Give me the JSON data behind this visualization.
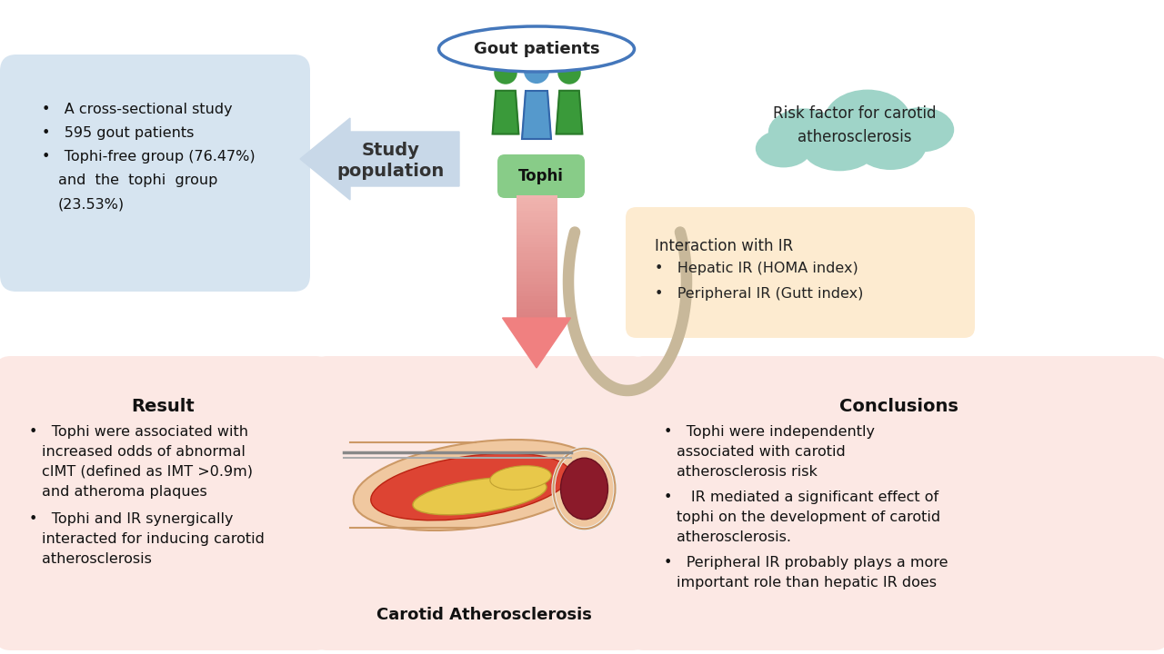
{
  "bg_color": "#ffffff",
  "gout_label": "Gout patients",
  "tophi_label": "Tophi",
  "study_pop_label": "Study\npopulation",
  "blue_box_color": "#d6e4f0",
  "cloud_color": "#9fd4c8",
  "cloud_text": "Risk factor for carotid\natherosclerosis",
  "ir_box_color": "#fdebd0",
  "ir_box_title": "Interaction with IR",
  "ir_box_bullets": [
    "Hepatic IR (HOMA index)",
    "Peripheral IR (Gutt index)"
  ],
  "result_box_color": "#fce8e4",
  "result_box_title": "Result",
  "carotid_label": "Carotid Atherosclerosis",
  "carotid_box_color": "#fce8e4",
  "conclusion_box_title": "Conclusions",
  "conclusion_box_color": "#fce8e4",
  "arrow_left_color": "#c8d8e8",
  "arrow_down_color": "#f0a0a0",
  "curl_color": "#c8b89a",
  "person_green": "#3a9a3a",
  "person_blue": "#5599cc",
  "tophi_box_color": "#88cc88",
  "ellipse_edge_color": "#4477bb"
}
